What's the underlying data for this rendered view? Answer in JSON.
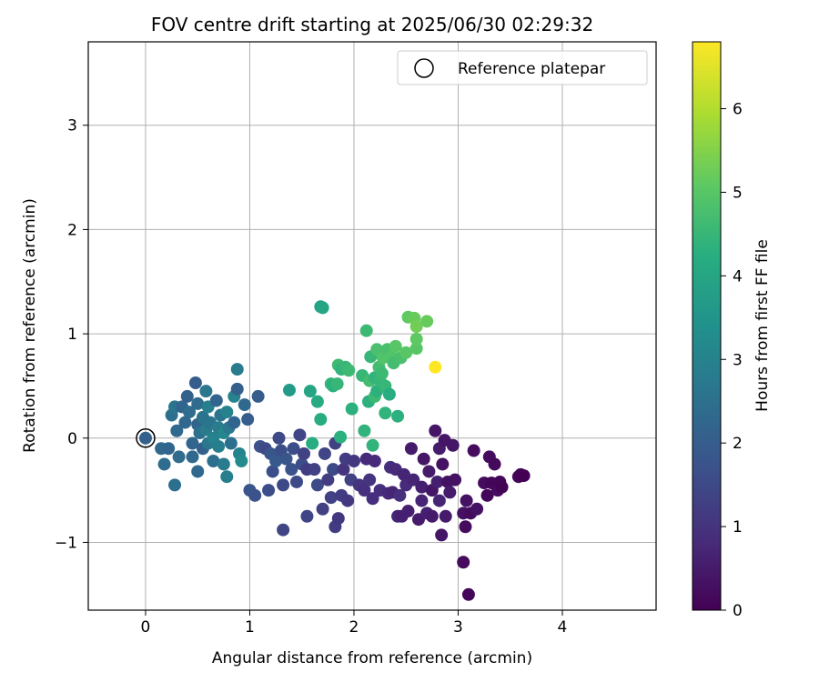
{
  "chart_data": {
    "type": "scatter",
    "title": "FOV centre drift starting at 2025/06/30 02:29:32",
    "xlabel": "Angular distance from reference (arcmin)",
    "ylabel": "Rotation from reference (arcmin)",
    "xlim": [
      -0.55,
      4.9
    ],
    "ylim": [
      -1.65,
      3.8
    ],
    "xticks": [
      "0",
      "1",
      "2",
      "3",
      "4"
    ],
    "yticks": [
      "−1",
      "0",
      "1",
      "2",
      "3"
    ],
    "grid": true,
    "legend": {
      "position": "top-right",
      "entries": [
        "Reference platepar"
      ]
    },
    "reference_point": {
      "x": 0,
      "y": 0
    },
    "colorbar": {
      "label": "Hours from first FF file",
      "colormap": "viridis",
      "range": [
        0,
        6.8
      ],
      "ticks": [
        "0",
        "1",
        "2",
        "3",
        "4",
        "5",
        "6"
      ]
    },
    "points": [
      {
        "x": 0.0,
        "y": 0.0,
        "c": 2.1
      },
      {
        "x": 0.15,
        "y": -0.1,
        "c": 2.3
      },
      {
        "x": 0.18,
        "y": -0.25,
        "c": 2.4
      },
      {
        "x": 0.22,
        "y": -0.1,
        "c": 2.2
      },
      {
        "x": 0.25,
        "y": 0.22,
        "c": 2.5
      },
      {
        "x": 0.28,
        "y": 0.3,
        "c": 2.6
      },
      {
        "x": 0.28,
        "y": -0.45,
        "c": 2.5
      },
      {
        "x": 0.3,
        "y": 0.07,
        "c": 2.3
      },
      {
        "x": 0.32,
        "y": -0.18,
        "c": 2.4
      },
      {
        "x": 0.35,
        "y": 0.3,
        "c": 2.2
      },
      {
        "x": 0.38,
        "y": 0.15,
        "c": 2.3
      },
      {
        "x": 0.4,
        "y": 0.4,
        "c": 2.1
      },
      {
        "x": 0.42,
        "y": 0.25,
        "c": 2.4
      },
      {
        "x": 0.45,
        "y": -0.05,
        "c": 2.2
      },
      {
        "x": 0.45,
        "y": -0.18,
        "c": 2.3
      },
      {
        "x": 0.48,
        "y": 0.53,
        "c": 2.0
      },
      {
        "x": 0.5,
        "y": 0.13,
        "c": 2.2
      },
      {
        "x": 0.5,
        "y": 0.33,
        "c": 2.4
      },
      {
        "x": 0.5,
        "y": -0.32,
        "c": 2.3
      },
      {
        "x": 0.52,
        "y": 0.05,
        "c": 2.5
      },
      {
        "x": 0.55,
        "y": 0.2,
        "c": 2.6
      },
      {
        "x": 0.55,
        "y": -0.1,
        "c": 2.1
      },
      {
        "x": 0.58,
        "y": 0.45,
        "c": 2.7
      },
      {
        "x": 0.58,
        "y": 0.08,
        "c": 2.8
      },
      {
        "x": 0.6,
        "y": 0.3,
        "c": 2.9
      },
      {
        "x": 0.6,
        "y": -0.05,
        "c": 2.7
      },
      {
        "x": 0.62,
        "y": 0.15,
        "c": 2.6
      },
      {
        "x": 0.65,
        "y": -0.22,
        "c": 2.5
      },
      {
        "x": 0.65,
        "y": 0.0,
        "c": 3.0
      },
      {
        "x": 0.68,
        "y": 0.36,
        "c": 2.2
      },
      {
        "x": 0.7,
        "y": 0.1,
        "c": 2.8
      },
      {
        "x": 0.7,
        "y": -0.08,
        "c": 2.9
      },
      {
        "x": 0.72,
        "y": 0.22,
        "c": 2.6
      },
      {
        "x": 0.75,
        "y": -0.25,
        "c": 2.8
      },
      {
        "x": 0.75,
        "y": 0.05,
        "c": 3.1
      },
      {
        "x": 0.78,
        "y": 0.25,
        "c": 3.0
      },
      {
        "x": 0.78,
        "y": -0.37,
        "c": 2.9
      },
      {
        "x": 0.8,
        "y": 0.1,
        "c": 2.7
      },
      {
        "x": 0.82,
        "y": -0.05,
        "c": 2.5
      },
      {
        "x": 0.85,
        "y": 0.4,
        "c": 3.0
      },
      {
        "x": 0.85,
        "y": 0.15,
        "c": 2.2
      },
      {
        "x": 0.88,
        "y": 0.66,
        "c": 2.8
      },
      {
        "x": 0.88,
        "y": 0.47,
        "c": 2.1
      },
      {
        "x": 0.9,
        "y": -0.15,
        "c": 3.0
      },
      {
        "x": 0.92,
        "y": -0.22,
        "c": 3.2
      },
      {
        "x": 0.95,
        "y": 0.32,
        "c": 2.3
      },
      {
        "x": 0.98,
        "y": 0.18,
        "c": 2.0
      },
      {
        "x": 1.0,
        "y": -0.5,
        "c": 1.8
      },
      {
        "x": 1.05,
        "y": -0.55,
        "c": 1.7
      },
      {
        "x": 1.08,
        "y": 0.4,
        "c": 2.0
      },
      {
        "x": 1.1,
        "y": -0.08,
        "c": 1.7
      },
      {
        "x": 1.15,
        "y": -0.1,
        "c": 1.5
      },
      {
        "x": 1.18,
        "y": -0.5,
        "c": 1.6
      },
      {
        "x": 1.2,
        "y": -0.15,
        "c": 1.8
      },
      {
        "x": 1.22,
        "y": -0.32,
        "c": 1.6
      },
      {
        "x": 1.25,
        "y": -0.22,
        "c": 1.9
      },
      {
        "x": 1.28,
        "y": 0.0,
        "c": 1.5
      },
      {
        "x": 1.3,
        "y": -0.12,
        "c": 1.6
      },
      {
        "x": 1.32,
        "y": -0.88,
        "c": 1.4
      },
      {
        "x": 1.32,
        "y": -0.45,
        "c": 1.5
      },
      {
        "x": 1.35,
        "y": -0.2,
        "c": 1.8
      },
      {
        "x": 1.38,
        "y": 0.46,
        "c": 3.7
      },
      {
        "x": 1.4,
        "y": -0.3,
        "c": 1.7
      },
      {
        "x": 1.42,
        "y": -0.1,
        "c": 1.6
      },
      {
        "x": 1.45,
        "y": -0.42,
        "c": 1.5
      },
      {
        "x": 1.48,
        "y": 0.03,
        "c": 1.4
      },
      {
        "x": 1.5,
        "y": -0.25,
        "c": 1.6
      },
      {
        "x": 1.52,
        "y": -0.15,
        "c": 1.3
      },
      {
        "x": 1.55,
        "y": -0.75,
        "c": 1.4
      },
      {
        "x": 1.55,
        "y": -0.3,
        "c": 1.2
      },
      {
        "x": 1.58,
        "y": 0.45,
        "c": 4.0
      },
      {
        "x": 1.6,
        "y": -0.05,
        "c": 4.2
      },
      {
        "x": 1.62,
        "y": -0.3,
        "c": 1.3
      },
      {
        "x": 1.65,
        "y": 0.35,
        "c": 4.1
      },
      {
        "x": 1.65,
        "y": -0.45,
        "c": 1.5
      },
      {
        "x": 1.68,
        "y": 1.26,
        "c": 3.9
      },
      {
        "x": 1.7,
        "y": 1.25,
        "c": 4.0
      },
      {
        "x": 1.68,
        "y": 0.18,
        "c": 4.2
      },
      {
        "x": 1.7,
        "y": -0.68,
        "c": 1.3
      },
      {
        "x": 1.72,
        "y": -0.15,
        "c": 1.4
      },
      {
        "x": 1.75,
        "y": -0.4,
        "c": 1.2
      },
      {
        "x": 1.78,
        "y": 0.52,
        "c": 4.4
      },
      {
        "x": 1.78,
        "y": -0.57,
        "c": 1.3
      },
      {
        "x": 1.8,
        "y": -0.3,
        "c": 1.5
      },
      {
        "x": 1.8,
        "y": 0.5,
        "c": 4.3
      },
      {
        "x": 1.82,
        "y": -0.85,
        "c": 1.2
      },
      {
        "x": 1.82,
        "y": -0.05,
        "c": 1.3
      },
      {
        "x": 1.84,
        "y": 0.52,
        "c": 4.5
      },
      {
        "x": 1.85,
        "y": 0.7,
        "c": 4.6
      },
      {
        "x": 1.85,
        "y": -0.77,
        "c": 1.1
      },
      {
        "x": 1.87,
        "y": 0.01,
        "c": 4.3
      },
      {
        "x": 1.88,
        "y": 0.66,
        "c": 4.4
      },
      {
        "x": 1.88,
        "y": -0.55,
        "c": 1.2
      },
      {
        "x": 1.9,
        "y": -0.3,
        "c": 1.0
      },
      {
        "x": 1.92,
        "y": 0.68,
        "c": 4.5
      },
      {
        "x": 1.92,
        "y": -0.2,
        "c": 1.2
      },
      {
        "x": 1.94,
        "y": -0.6,
        "c": 1.1
      },
      {
        "x": 1.95,
        "y": 0.65,
        "c": 4.6
      },
      {
        "x": 1.97,
        "y": -0.4,
        "c": 1.3
      },
      {
        "x": 1.98,
        "y": 0.28,
        "c": 4.3
      },
      {
        "x": 2.0,
        "y": -0.22,
        "c": 1.1
      },
      {
        "x": 2.05,
        "y": -0.45,
        "c": 1.0
      },
      {
        "x": 2.08,
        "y": 0.6,
        "c": 4.5
      },
      {
        "x": 2.1,
        "y": 0.07,
        "c": 4.4
      },
      {
        "x": 2.1,
        "y": -0.5,
        "c": 0.9
      },
      {
        "x": 2.12,
        "y": 1.03,
        "c": 4.6
      },
      {
        "x": 2.12,
        "y": -0.2,
        "c": 0.8
      },
      {
        "x": 2.14,
        "y": 0.35,
        "c": 4.3
      },
      {
        "x": 2.15,
        "y": 0.55,
        "c": 4.7
      },
      {
        "x": 2.15,
        "y": -0.4,
        "c": 1.0
      },
      {
        "x": 2.16,
        "y": 0.78,
        "c": 4.5
      },
      {
        "x": 2.18,
        "y": -0.07,
        "c": 4.4
      },
      {
        "x": 2.18,
        "y": -0.58,
        "c": 0.9
      },
      {
        "x": 2.2,
        "y": 0.4,
        "c": 4.6
      },
      {
        "x": 2.2,
        "y": 0.58,
        "c": 4.4
      },
      {
        "x": 2.2,
        "y": -0.22,
        "c": 0.8
      },
      {
        "x": 2.22,
        "y": 0.85,
        "c": 4.8
      },
      {
        "x": 2.22,
        "y": 0.45,
        "c": 4.3
      },
      {
        "x": 2.24,
        "y": 0.68,
        "c": 4.7
      },
      {
        "x": 2.25,
        "y": -0.5,
        "c": 0.9
      },
      {
        "x": 2.25,
        "y": 0.55,
        "c": 4.5
      },
      {
        "x": 2.27,
        "y": 0.62,
        "c": 4.6
      },
      {
        "x": 2.28,
        "y": 0.77,
        "c": 4.9
      },
      {
        "x": 2.3,
        "y": 0.5,
        "c": 4.5
      },
      {
        "x": 2.3,
        "y": 0.24,
        "c": 4.4
      },
      {
        "x": 2.32,
        "y": 0.85,
        "c": 4.8
      },
      {
        "x": 2.33,
        "y": -0.53,
        "c": 0.8
      },
      {
        "x": 2.34,
        "y": 0.42,
        "c": 4.2
      },
      {
        "x": 2.35,
        "y": -0.28,
        "c": 0.9
      },
      {
        "x": 2.36,
        "y": 0.78,
        "c": 4.9
      },
      {
        "x": 2.37,
        "y": -0.52,
        "c": 0.7
      },
      {
        "x": 2.38,
        "y": 0.72,
        "c": 4.7
      },
      {
        "x": 2.4,
        "y": 0.88,
        "c": 5.0
      },
      {
        "x": 2.4,
        "y": -0.3,
        "c": 0.8
      },
      {
        "x": 2.42,
        "y": -0.75,
        "c": 0.7
      },
      {
        "x": 2.42,
        "y": 0.21,
        "c": 4.3
      },
      {
        "x": 2.44,
        "y": -0.55,
        "c": 0.9
      },
      {
        "x": 2.45,
        "y": 0.77,
        "c": 4.8
      },
      {
        "x": 2.46,
        "y": -0.75,
        "c": 0.6
      },
      {
        "x": 2.48,
        "y": -0.35,
        "c": 0.7
      },
      {
        "x": 2.5,
        "y": 0.82,
        "c": 5.0
      },
      {
        "x": 2.5,
        "y": -0.45,
        "c": 0.8
      },
      {
        "x": 2.52,
        "y": 1.16,
        "c": 5.1
      },
      {
        "x": 2.52,
        "y": -0.7,
        "c": 0.6
      },
      {
        "x": 2.55,
        "y": -0.1,
        "c": 0.5
      },
      {
        "x": 2.57,
        "y": -0.4,
        "c": 0.7
      },
      {
        "x": 2.58,
        "y": 1.15,
        "c": 5.2
      },
      {
        "x": 2.6,
        "y": 0.86,
        "c": 5.0
      },
      {
        "x": 2.6,
        "y": 0.95,
        "c": 5.1
      },
      {
        "x": 2.6,
        "y": 1.07,
        "c": 5.3
      },
      {
        "x": 2.62,
        "y": -0.78,
        "c": 0.5
      },
      {
        "x": 2.65,
        "y": -0.47,
        "c": 0.6
      },
      {
        "x": 2.65,
        "y": -0.6,
        "c": 0.7
      },
      {
        "x": 2.67,
        "y": -0.2,
        "c": 0.4
      },
      {
        "x": 2.7,
        "y": 1.12,
        "c": 5.2
      },
      {
        "x": 2.7,
        "y": -0.72,
        "c": 0.6
      },
      {
        "x": 2.72,
        "y": -0.32,
        "c": 0.5
      },
      {
        "x": 2.75,
        "y": -0.5,
        "c": 0.4
      },
      {
        "x": 2.75,
        "y": -0.75,
        "c": 0.5
      },
      {
        "x": 2.78,
        "y": 0.68,
        "c": 6.8
      },
      {
        "x": 2.78,
        "y": 0.07,
        "c": 0.4
      },
      {
        "x": 2.8,
        "y": -0.42,
        "c": 0.6
      },
      {
        "x": 2.82,
        "y": -0.1,
        "c": 0.5
      },
      {
        "x": 2.82,
        "y": -0.6,
        "c": 0.7
      },
      {
        "x": 2.84,
        "y": -0.93,
        "c": 0.4
      },
      {
        "x": 2.85,
        "y": -0.25,
        "c": 0.3
      },
      {
        "x": 2.87,
        "y": -0.02,
        "c": 0.4
      },
      {
        "x": 2.88,
        "y": -0.75,
        "c": 0.5
      },
      {
        "x": 2.9,
        "y": -0.42,
        "c": 0.3
      },
      {
        "x": 2.92,
        "y": -0.52,
        "c": 0.5
      },
      {
        "x": 2.95,
        "y": -0.07,
        "c": 0.4
      },
      {
        "x": 2.97,
        "y": -0.4,
        "c": 0.3
      },
      {
        "x": 3.05,
        "y": -1.19,
        "c": 0.2
      },
      {
        "x": 3.05,
        "y": -0.72,
        "c": 0.3
      },
      {
        "x": 3.07,
        "y": -0.85,
        "c": 0.2
      },
      {
        "x": 3.08,
        "y": -0.6,
        "c": 0.3
      },
      {
        "x": 3.1,
        "y": -1.5,
        "c": 0.1
      },
      {
        "x": 3.12,
        "y": -0.72,
        "c": 0.2
      },
      {
        "x": 3.15,
        "y": -0.12,
        "c": 0.2
      },
      {
        "x": 3.18,
        "y": -0.68,
        "c": 0.3
      },
      {
        "x": 3.25,
        "y": -0.43,
        "c": 0.2
      },
      {
        "x": 3.28,
        "y": -0.55,
        "c": 0.1
      },
      {
        "x": 3.3,
        "y": -0.18,
        "c": 0.2
      },
      {
        "x": 3.32,
        "y": -0.43,
        "c": 0.1
      },
      {
        "x": 3.35,
        "y": -0.25,
        "c": 0.15
      },
      {
        "x": 3.38,
        "y": -0.5,
        "c": 0.2
      },
      {
        "x": 3.4,
        "y": -0.42,
        "c": 0.1
      },
      {
        "x": 3.42,
        "y": -0.47,
        "c": 0.05
      },
      {
        "x": 3.58,
        "y": -0.37,
        "c": 0.1
      },
      {
        "x": 3.6,
        "y": -0.35,
        "c": 0.05
      },
      {
        "x": 3.63,
        "y": -0.36,
        "c": 0.0
      }
    ]
  }
}
